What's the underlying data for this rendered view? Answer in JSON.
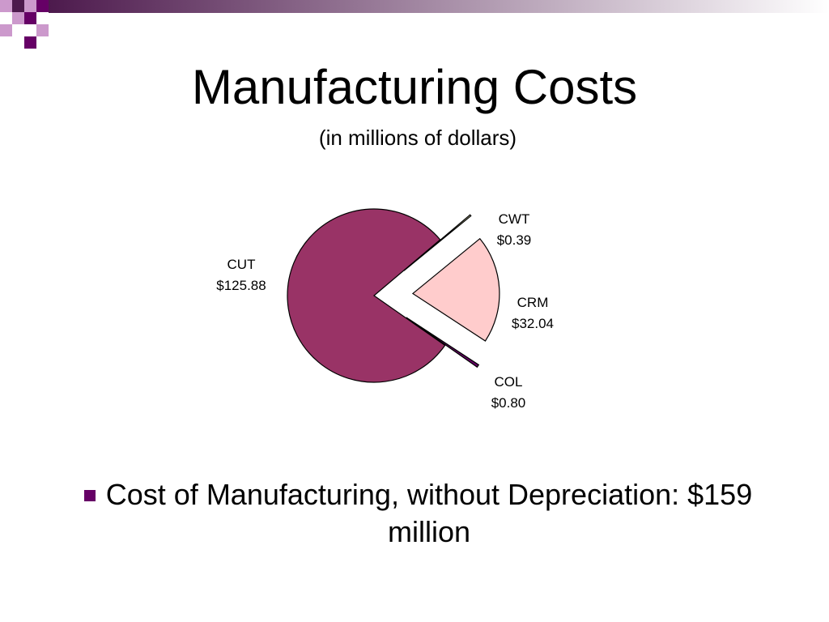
{
  "chart_data": {
    "type": "pie",
    "title": "Manufacturing Costs",
    "subtitle": "(in millions of dollars)",
    "categories": [
      "CUT",
      "CWT",
      "CRM",
      "COL"
    ],
    "values": [
      125.88,
      0.39,
      32.04,
      0.8
    ],
    "value_labels": [
      "$125.88",
      "$0.39",
      "$32.04",
      "$0.80"
    ],
    "colors": [
      "#993366",
      "#ffffcc",
      "#ffcccc",
      "#660066"
    ]
  },
  "bullets": [
    "Cost of Manufacturing, without Depreciation: $159 million"
  ]
}
